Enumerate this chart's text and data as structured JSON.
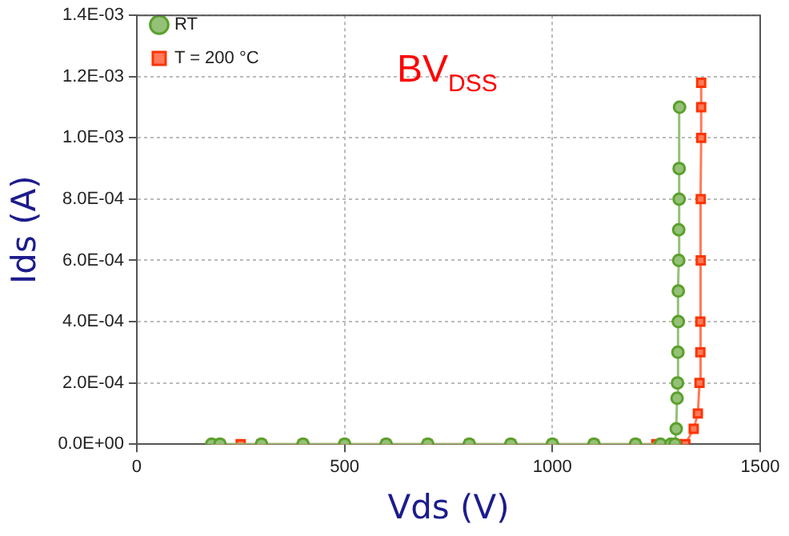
{
  "chart_data": {
    "type": "line",
    "xlabel": "Vds (V)",
    "ylabel": "Ids (A)",
    "annotations": [
      "BV$_{DSS}$"
    ],
    "xlim": [
      0,
      1500
    ],
    "xticks": [
      0,
      500,
      1000,
      1500
    ],
    "ylim": [
      0,
      0.0014
    ],
    "yticks": [
      {
        "value": 0,
        "label": "0.0E+00"
      },
      {
        "value": 0.0002,
        "label": "2.0E-04"
      },
      {
        "value": 0.0004,
        "label": "4.0E-04"
      },
      {
        "value": 0.0006,
        "label": "6.0E-04"
      },
      {
        "value": 0.0008,
        "label": "8.0E-04"
      },
      {
        "value": 0.001,
        "label": "1.0E-03"
      },
      {
        "value": 0.0012,
        "label": "1.2E-03"
      },
      {
        "value": 0.0014,
        "label": "1.4E-03"
      }
    ],
    "grid": true,
    "legend": "top left",
    "series": [
      {
        "name": "RT",
        "color": "#5aa02c",
        "marker": "circle",
        "x": [
          180,
          200,
          300,
          400,
          500,
          600,
          700,
          800,
          900,
          1000,
          1100,
          1200,
          1260,
          1285,
          1295,
          1298,
          1300,
          1301,
          1302,
          1303,
          1303,
          1304,
          1304,
          1305,
          1305,
          1306
        ],
        "values": [
          0,
          0,
          0,
          0,
          0,
          0,
          0,
          0,
          0,
          0,
          0,
          0,
          0,
          0,
          0,
          5e-05,
          0.00015,
          0.0002,
          0.0003,
          0.0004,
          0.0005,
          0.0006,
          0.0007,
          0.0008,
          0.0009,
          0.0011
        ]
      },
      {
        "name": "T = 200 °C",
        "color": "#ff3300",
        "marker": "square",
        "x": [
          190,
          200,
          250,
          300,
          400,
          500,
          600,
          700,
          800,
          900,
          1000,
          1100,
          1200,
          1250,
          1300,
          1320,
          1340,
          1350,
          1354,
          1356,
          1356,
          1357,
          1357,
          1358,
          1358,
          1358
        ],
        "values": [
          0,
          0,
          0,
          0,
          0,
          0,
          0,
          0,
          0,
          0,
          0,
          0,
          0,
          0,
          0,
          0,
          5e-05,
          0.0001,
          0.0002,
          0.0003,
          0.0004,
          0.0006,
          0.0008,
          0.001,
          0.0011,
          0.00118
        ]
      }
    ]
  }
}
